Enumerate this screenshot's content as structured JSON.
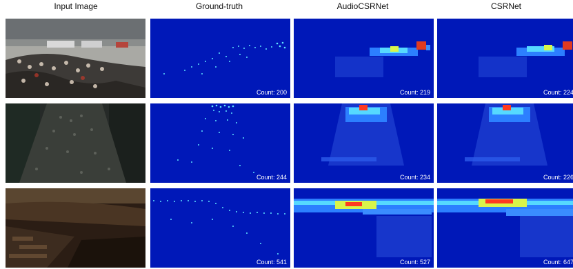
{
  "headers": [
    "Input Image",
    "Ground-truth",
    "AudioCSRNet",
    "CSRNet"
  ],
  "rows": [
    {
      "counts": {
        "ground_truth": "Count: 200",
        "audiocsrnet": "Count: 219",
        "csrnet": "Count: 224"
      }
    },
    {
      "counts": {
        "ground_truth": "Count: 244",
        "audiocsrnet": "Count: 234",
        "csrnet": "Count: 226"
      }
    },
    {
      "counts": {
        "ground_truth": "Count: 541",
        "audiocsrnet": "Count: 527",
        "csrnet": "Count: 647"
      }
    }
  ],
  "colors": {
    "density_background": "#0018b8",
    "dots": "#5fe6ff"
  }
}
